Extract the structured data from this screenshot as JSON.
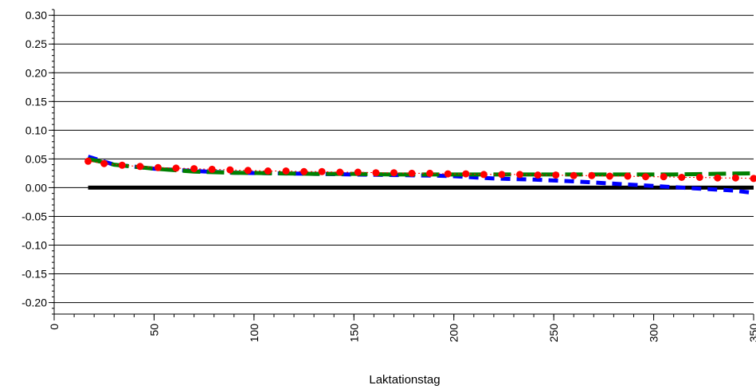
{
  "chart_data": {
    "type": "line",
    "title": "",
    "xlabel": "Laktationstag",
    "ylabel": "",
    "xlim": [
      0,
      350
    ],
    "ylim": [
      -0.22,
      0.31
    ],
    "x_ticks": [
      0,
      50,
      100,
      150,
      200,
      250,
      300,
      350
    ],
    "y_ticks": [
      -0.2,
      -0.15,
      -0.1,
      -0.05,
      0.0,
      0.05,
      0.1,
      0.15,
      0.2,
      0.25,
      0.3
    ],
    "y_tick_labels": [
      "-0.20",
      "-0.15",
      "-0.10",
      "-0.05",
      "0.00",
      "0.05",
      "0.10",
      "0.15",
      "0.20",
      "0.25",
      "0.30"
    ],
    "grid": "horizontal",
    "legend": "none",
    "series": [
      {
        "style": "solid-thick",
        "color": "#000000",
        "x": [
          17,
          350
        ],
        "values": [
          0.0,
          0.0
        ]
      },
      {
        "style": "dashed-thick",
        "color": "#0000ff",
        "x": [
          17,
          30,
          50,
          70,
          90,
          110,
          130,
          150,
          170,
          190,
          200,
          210,
          220,
          240,
          260,
          280,
          300,
          320,
          340,
          350
        ],
        "values": [
          0.054,
          0.04,
          0.033,
          0.029,
          0.026,
          0.025,
          0.024,
          0.023,
          0.022,
          0.021,
          0.02,
          0.018,
          0.016,
          0.014,
          0.011,
          0.007,
          0.003,
          -0.001,
          -0.005,
          -0.009
        ]
      },
      {
        "style": "dashed-thick",
        "color": "#008000",
        "x": [
          17,
          30,
          50,
          70,
          90,
          110,
          130,
          150,
          170,
          190,
          210,
          230,
          250,
          270,
          290,
          310,
          330,
          350
        ],
        "values": [
          0.05,
          0.04,
          0.033,
          0.028,
          0.026,
          0.025,
          0.024,
          0.024,
          0.023,
          0.023,
          0.023,
          0.023,
          0.023,
          0.023,
          0.023,
          0.023,
          0.024,
          0.025
        ]
      },
      {
        "style": "dotted-markers",
        "color": "#ff0000",
        "x": [
          17,
          25,
          34,
          43,
          52,
          61,
          70,
          79,
          88,
          97,
          107,
          116,
          125,
          134,
          143,
          152,
          161,
          170,
          179,
          188,
          197,
          206,
          215,
          224,
          233,
          242,
          251,
          260,
          269,
          278,
          287,
          296,
          305,
          314,
          323,
          332,
          341,
          350
        ],
        "values": [
          0.046,
          0.042,
          0.039,
          0.037,
          0.035,
          0.034,
          0.033,
          0.032,
          0.031,
          0.03,
          0.029,
          0.029,
          0.028,
          0.028,
          0.027,
          0.027,
          0.026,
          0.026,
          0.025,
          0.025,
          0.024,
          0.024,
          0.023,
          0.023,
          0.023,
          0.022,
          0.022,
          0.021,
          0.021,
          0.02,
          0.02,
          0.019,
          0.019,
          0.018,
          0.018,
          0.017,
          0.017,
          0.016
        ]
      }
    ]
  }
}
